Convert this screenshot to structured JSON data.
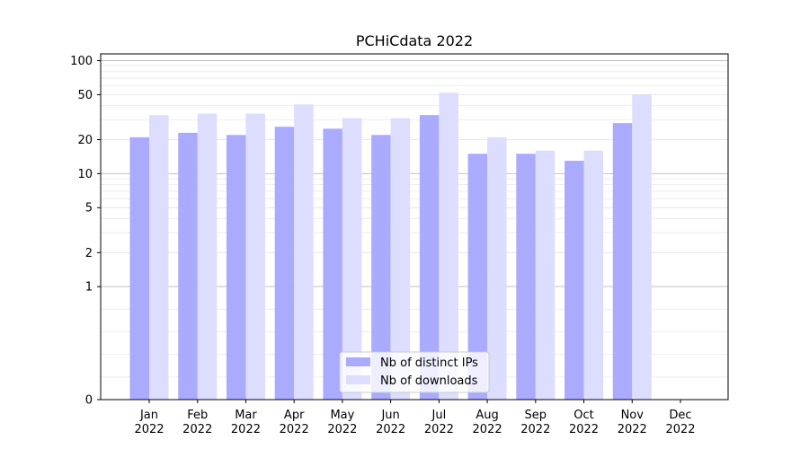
{
  "chart_data": {
    "type": "bar",
    "title": "PCHiCdata 2022",
    "xlabel": "",
    "ylabel": "",
    "y_scale": "symlog",
    "ylim": [
      0,
      100
    ],
    "y_ticks": [
      0,
      1,
      2,
      5,
      10,
      20,
      50,
      100
    ],
    "categories": [
      [
        "Jan",
        "2022"
      ],
      [
        "Feb",
        "2022"
      ],
      [
        "Mar",
        "2022"
      ],
      [
        "Apr",
        "2022"
      ],
      [
        "May",
        "2022"
      ],
      [
        "Jun",
        "2022"
      ],
      [
        "Jul",
        "2022"
      ],
      [
        "Aug",
        "2022"
      ],
      [
        "Sep",
        "2022"
      ],
      [
        "Oct",
        "2022"
      ],
      [
        "Nov",
        "2022"
      ],
      [
        "Dec",
        "2022"
      ]
    ],
    "series": [
      {
        "name": "Nb of distinct IPs",
        "color": "#aaaaff",
        "values": [
          21,
          23,
          22,
          26,
          25,
          22,
          33,
          15,
          15,
          13,
          28,
          0
        ]
      },
      {
        "name": "Nb of downloads",
        "color": "#ddddff",
        "values": [
          33,
          34,
          34,
          41,
          31,
          31,
          52,
          21,
          16,
          16,
          50,
          0
        ]
      }
    ],
    "legend_position": "bottom-center",
    "grid": true
  }
}
